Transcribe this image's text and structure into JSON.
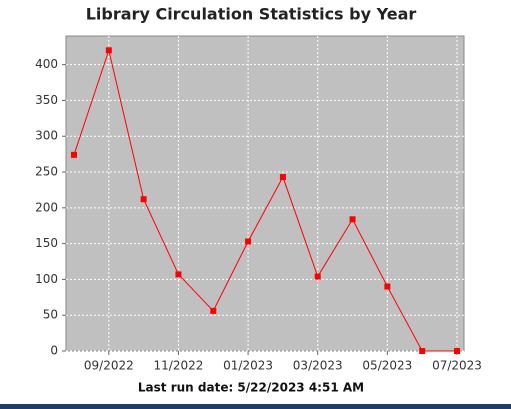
{
  "chart_data": {
    "type": "line",
    "title": "Library Circulation Statistics by Year",
    "x": [
      "2022-08",
      "2022-09",
      "2022-10",
      "2022-11",
      "2022-12",
      "2023-01",
      "2023-02",
      "2023-03",
      "2023-04",
      "2023-05",
      "2023-06",
      "2023-07"
    ],
    "series": [
      {
        "color": "#ff0000",
        "values": [
          274,
          420,
          212,
          107,
          56,
          153,
          243,
          104,
          184,
          90,
          0,
          0
        ]
      }
    ],
    "xlim": [
      "2022-08",
      "2023-07"
    ],
    "xticks": [
      {
        "value": "2022-09",
        "label": "09/2022"
      },
      {
        "value": "2022-11",
        "label": "11/2022"
      },
      {
        "value": "2023-01",
        "label": "01/2023"
      },
      {
        "value": "2023-03",
        "label": "03/2023"
      },
      {
        "value": "2023-05",
        "label": "05/2023"
      },
      {
        "value": "2023-07",
        "label": "07/2023"
      }
    ],
    "ylim": [
      0,
      440
    ],
    "yticks": [
      0,
      50,
      100,
      150,
      200,
      250,
      300,
      350,
      400
    ],
    "grid": true
  },
  "footer": "Last run date: 5/22/2023 4:51 AM"
}
